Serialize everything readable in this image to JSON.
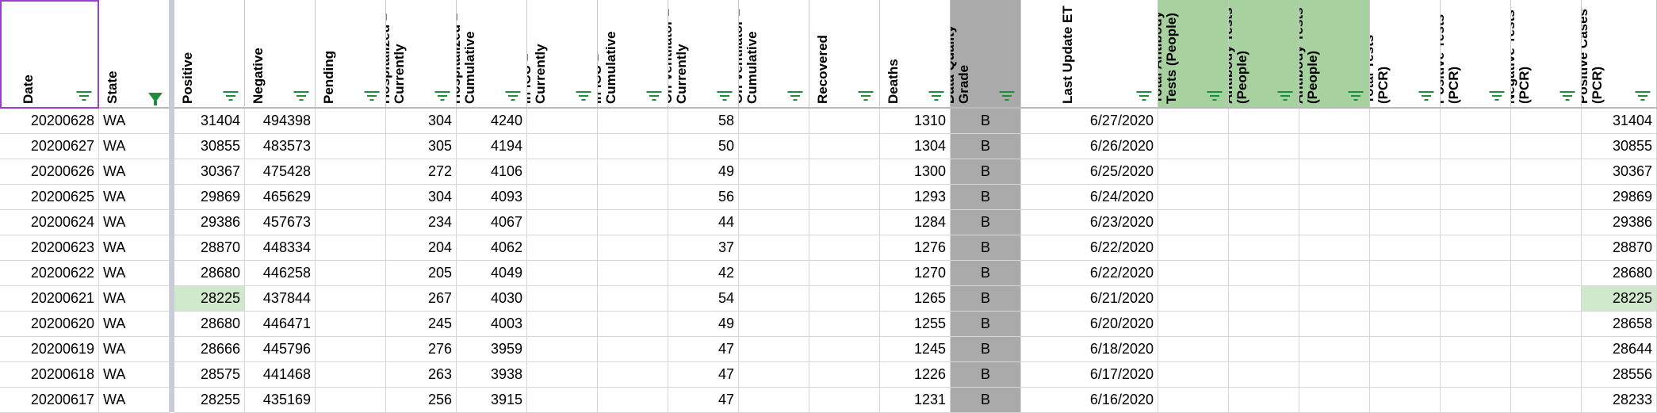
{
  "columns": [
    {
      "key": "date",
      "label": "Date",
      "align": "r",
      "filter": "lines"
    },
    {
      "key": "state",
      "label": "State",
      "align": "l",
      "filter": "funnel"
    },
    {
      "key": "positive",
      "label": "Positive",
      "align": "r",
      "filter": "lines"
    },
    {
      "key": "negative",
      "label": "Negative",
      "align": "r",
      "filter": "lines"
    },
    {
      "key": "pending",
      "label": "Pending",
      "align": "r",
      "filter": "lines"
    },
    {
      "key": "hosp_cur",
      "label": "Hospitalized – Currently",
      "align": "r",
      "filter": "lines"
    },
    {
      "key": "hosp_cum",
      "label": "Hospitalized – Cumulative",
      "align": "r",
      "filter": "lines"
    },
    {
      "key": "icu_cur",
      "label": "In ICU – Currently",
      "align": "r",
      "filter": "lines"
    },
    {
      "key": "icu_cum",
      "label": "In ICU – Cumulative",
      "align": "r",
      "filter": "lines"
    },
    {
      "key": "vent_cur",
      "label": "On Ventilator – Currently",
      "align": "r",
      "filter": "lines"
    },
    {
      "key": "vent_cum",
      "label": "On Ventilator – Cumulative",
      "align": "r",
      "filter": "lines"
    },
    {
      "key": "recovered",
      "label": "Recovered",
      "align": "r",
      "filter": "lines"
    },
    {
      "key": "deaths",
      "label": "Deaths",
      "align": "r",
      "filter": "lines"
    },
    {
      "key": "grade",
      "label": "Data Quality Grade",
      "align": "c",
      "filter": "lines",
      "shade": "gray"
    },
    {
      "key": "last_update",
      "label": "Last Update ET",
      "align": "r",
      "filter": "lines"
    },
    {
      "key": "ab_total",
      "label": "Total Antibody Tests (People)",
      "align": "r",
      "filter": "lines",
      "shade": "green"
    },
    {
      "key": "ab_pos",
      "label": "Positive Antibody Tests (People)",
      "align": "r",
      "filter": "lines",
      "shade": "green"
    },
    {
      "key": "ab_neg",
      "label": "Negative Antibody Tests (People)",
      "align": "r",
      "filter": "lines",
      "shade": "green"
    },
    {
      "key": "pcr_total",
      "label": "Total Tests (PCR)",
      "align": "r",
      "filter": "lines"
    },
    {
      "key": "pcr_pos_tests",
      "label": "Positive Tests (PCR)",
      "align": "r",
      "filter": "lines"
    },
    {
      "key": "pcr_neg",
      "label": "Negative Tests (PCR)",
      "align": "r",
      "filter": "lines"
    },
    {
      "key": "pcr_pos_cases",
      "label": "Positive Cases (PCR)",
      "align": "r",
      "filter": "lines"
    }
  ],
  "rows": [
    {
      "date": "20200628",
      "state": "WA",
      "positive": "31404",
      "negative": "494398",
      "pending": "",
      "hosp_cur": "304",
      "hosp_cum": "4240",
      "icu_cur": "",
      "icu_cum": "",
      "vent_cur": "58",
      "vent_cum": "",
      "recovered": "",
      "deaths": "1310",
      "grade": "B",
      "last_update": "6/27/2020",
      "ab_total": "",
      "ab_pos": "",
      "ab_neg": "",
      "pcr_total": "",
      "pcr_pos_tests": "",
      "pcr_neg": "",
      "pcr_pos_cases": "31404"
    },
    {
      "date": "20200627",
      "state": "WA",
      "positive": "30855",
      "negative": "483573",
      "pending": "",
      "hosp_cur": "305",
      "hosp_cum": "4194",
      "icu_cur": "",
      "icu_cum": "",
      "vent_cur": "50",
      "vent_cum": "",
      "recovered": "",
      "deaths": "1304",
      "grade": "B",
      "last_update": "6/26/2020",
      "ab_total": "",
      "ab_pos": "",
      "ab_neg": "",
      "pcr_total": "",
      "pcr_pos_tests": "",
      "pcr_neg": "",
      "pcr_pos_cases": "30855"
    },
    {
      "date": "20200626",
      "state": "WA",
      "positive": "30367",
      "negative": "475428",
      "pending": "",
      "hosp_cur": "272",
      "hosp_cum": "4106",
      "icu_cur": "",
      "icu_cum": "",
      "vent_cur": "49",
      "vent_cum": "",
      "recovered": "",
      "deaths": "1300",
      "grade": "B",
      "last_update": "6/25/2020",
      "ab_total": "",
      "ab_pos": "",
      "ab_neg": "",
      "pcr_total": "",
      "pcr_pos_tests": "",
      "pcr_neg": "",
      "pcr_pos_cases": "30367"
    },
    {
      "date": "20200625",
      "state": "WA",
      "positive": "29869",
      "negative": "465629",
      "pending": "",
      "hosp_cur": "304",
      "hosp_cum": "4093",
      "icu_cur": "",
      "icu_cum": "",
      "vent_cur": "56",
      "vent_cum": "",
      "recovered": "",
      "deaths": "1293",
      "grade": "B",
      "last_update": "6/24/2020",
      "ab_total": "",
      "ab_pos": "",
      "ab_neg": "",
      "pcr_total": "",
      "pcr_pos_tests": "",
      "pcr_neg": "",
      "pcr_pos_cases": "29869"
    },
    {
      "date": "20200624",
      "state": "WA",
      "positive": "29386",
      "negative": "457673",
      "pending": "",
      "hosp_cur": "234",
      "hosp_cum": "4067",
      "icu_cur": "",
      "icu_cum": "",
      "vent_cur": "44",
      "vent_cum": "",
      "recovered": "",
      "deaths": "1284",
      "grade": "B",
      "last_update": "6/23/2020",
      "ab_total": "",
      "ab_pos": "",
      "ab_neg": "",
      "pcr_total": "",
      "pcr_pos_tests": "",
      "pcr_neg": "",
      "pcr_pos_cases": "29386"
    },
    {
      "date": "20200623",
      "state": "WA",
      "positive": "28870",
      "negative": "448334",
      "pending": "",
      "hosp_cur": "204",
      "hosp_cum": "4062",
      "icu_cur": "",
      "icu_cum": "",
      "vent_cur": "37",
      "vent_cum": "",
      "recovered": "",
      "deaths": "1276",
      "grade": "B",
      "last_update": "6/22/2020",
      "ab_total": "",
      "ab_pos": "",
      "ab_neg": "",
      "pcr_total": "",
      "pcr_pos_tests": "",
      "pcr_neg": "",
      "pcr_pos_cases": "28870"
    },
    {
      "date": "20200622",
      "state": "WA",
      "positive": "28680",
      "negative": "446258",
      "pending": "",
      "hosp_cur": "205",
      "hosp_cum": "4049",
      "icu_cur": "",
      "icu_cum": "",
      "vent_cur": "42",
      "vent_cum": "",
      "recovered": "",
      "deaths": "1270",
      "grade": "B",
      "last_update": "6/22/2020",
      "ab_total": "",
      "ab_pos": "",
      "ab_neg": "",
      "pcr_total": "",
      "pcr_pos_tests": "",
      "pcr_neg": "",
      "pcr_pos_cases": "28680"
    },
    {
      "date": "20200621",
      "state": "WA",
      "positive": "28225",
      "negative": "437844",
      "pending": "",
      "hosp_cur": "267",
      "hosp_cum": "4030",
      "icu_cur": "",
      "icu_cum": "",
      "vent_cur": "54",
      "vent_cum": "",
      "recovered": "",
      "deaths": "1265",
      "grade": "B",
      "last_update": "6/21/2020",
      "ab_total": "",
      "ab_pos": "",
      "ab_neg": "",
      "pcr_total": "",
      "pcr_pos_tests": "",
      "pcr_neg": "",
      "pcr_pos_cases": "28225",
      "highlight": [
        "positive",
        "pcr_pos_cases"
      ]
    },
    {
      "date": "20200620",
      "state": "WA",
      "positive": "28680",
      "negative": "446471",
      "pending": "",
      "hosp_cur": "245",
      "hosp_cum": "4003",
      "icu_cur": "",
      "icu_cum": "",
      "vent_cur": "49",
      "vent_cum": "",
      "recovered": "",
      "deaths": "1255",
      "grade": "B",
      "last_update": "6/20/2020",
      "ab_total": "",
      "ab_pos": "",
      "ab_neg": "",
      "pcr_total": "",
      "pcr_pos_tests": "",
      "pcr_neg": "",
      "pcr_pos_cases": "28658"
    },
    {
      "date": "20200619",
      "state": "WA",
      "positive": "28666",
      "negative": "445796",
      "pending": "",
      "hosp_cur": "276",
      "hosp_cum": "3959",
      "icu_cur": "",
      "icu_cum": "",
      "vent_cur": "47",
      "vent_cum": "",
      "recovered": "",
      "deaths": "1245",
      "grade": "B",
      "last_update": "6/18/2020",
      "ab_total": "",
      "ab_pos": "",
      "ab_neg": "",
      "pcr_total": "",
      "pcr_pos_tests": "",
      "pcr_neg": "",
      "pcr_pos_cases": "28644"
    },
    {
      "date": "20200618",
      "state": "WA",
      "positive": "28575",
      "negative": "441468",
      "pending": "",
      "hosp_cur": "263",
      "hosp_cum": "3938",
      "icu_cur": "",
      "icu_cum": "",
      "vent_cur": "47",
      "vent_cum": "",
      "recovered": "",
      "deaths": "1226",
      "grade": "B",
      "last_update": "6/17/2020",
      "ab_total": "",
      "ab_pos": "",
      "ab_neg": "",
      "pcr_total": "",
      "pcr_pos_tests": "",
      "pcr_neg": "",
      "pcr_pos_cases": "28556"
    },
    {
      "date": "20200617",
      "state": "WA",
      "positive": "28255",
      "negative": "435169",
      "pending": "",
      "hosp_cur": "256",
      "hosp_cum": "3915",
      "icu_cur": "",
      "icu_cum": "",
      "vent_cur": "47",
      "vent_cum": "",
      "recovered": "",
      "deaths": "1231",
      "grade": "B",
      "last_update": "6/16/2020",
      "ab_total": "",
      "ab_pos": "",
      "ab_neg": "",
      "pcr_total": "",
      "pcr_pos_tests": "",
      "pcr_neg": "",
      "pcr_pos_cases": "28233"
    }
  ]
}
